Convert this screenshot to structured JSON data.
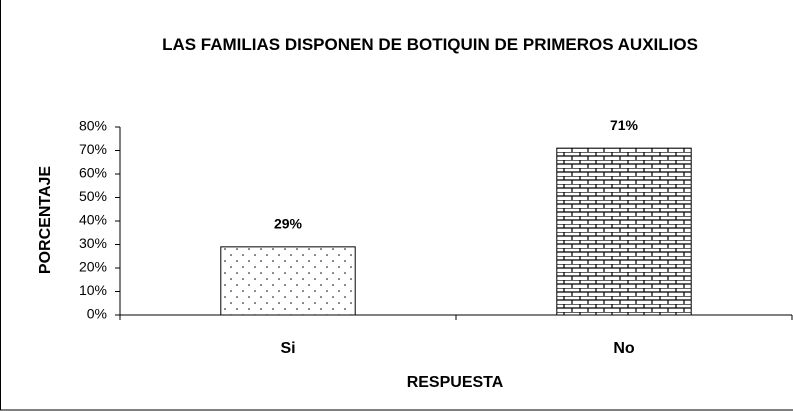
{
  "chart_data": {
    "type": "bar",
    "title": "LAS FAMILIAS DISPONEN DE BOTIQUIN DE PRIMEROS AUXILIOS",
    "x_label": "RESPUESTA",
    "y_label": "PORCENTAJE",
    "categories": [
      "Si",
      "No"
    ],
    "values": [
      29,
      71
    ],
    "value_labels": [
      "29%",
      "71%"
    ],
    "ylim": [
      0,
      80
    ],
    "yticks": [
      {
        "value": 0,
        "label": "0%"
      },
      {
        "value": 10,
        "label": "10%"
      },
      {
        "value": 20,
        "label": "20%"
      },
      {
        "value": 30,
        "label": "30%"
      },
      {
        "value": 40,
        "label": "40%"
      },
      {
        "value": 50,
        "label": "50%"
      },
      {
        "value": 60,
        "label": "60%"
      },
      {
        "value": 70,
        "label": "70%"
      },
      {
        "value": 80,
        "label": "80%"
      }
    ],
    "grid": false
  }
}
